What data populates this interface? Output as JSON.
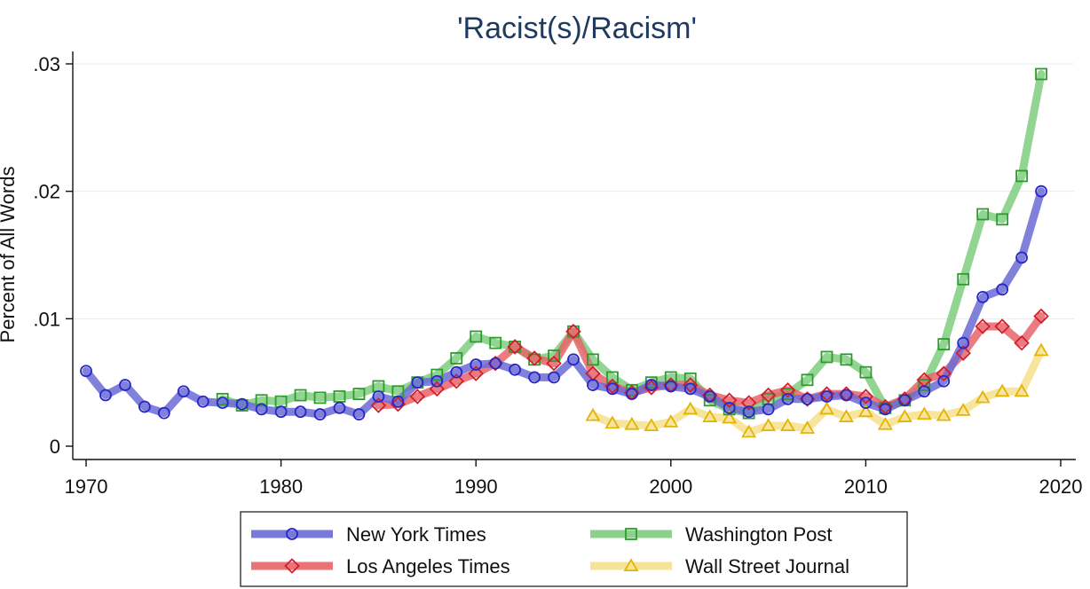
{
  "chart_data": {
    "type": "line",
    "title": "'Racist(s)/Racism'",
    "xlabel": "",
    "ylabel": "Percent of All Words",
    "xlim": [
      1970,
      2020
    ],
    "ylim": [
      0,
      0.03
    ],
    "x_ticks": [
      1970,
      1980,
      1990,
      2000,
      2010,
      2020
    ],
    "y_ticks": [
      0,
      0.01,
      0.02,
      0.03
    ],
    "y_tick_labels": [
      "0",
      ".01",
      ".02",
      ".03"
    ],
    "grid": true,
    "legend_position": "bottom",
    "series": [
      {
        "name": "New York Times",
        "color": "#6b6bd6",
        "marker_color": "#2727c8",
        "marker": "circle",
        "points": [
          [
            1970,
            0.0059
          ],
          [
            1971,
            0.004
          ],
          [
            1972,
            0.0048
          ],
          [
            1973,
            0.0031
          ],
          [
            1974,
            0.0026
          ],
          [
            1975,
            0.0043
          ],
          [
            1976,
            0.0035
          ],
          [
            1977,
            0.0034
          ],
          [
            1978,
            0.0033
          ],
          [
            1979,
            0.0029
          ],
          [
            1980,
            0.0027
          ],
          [
            1981,
            0.0027
          ],
          [
            1982,
            0.0025
          ],
          [
            1983,
            0.003
          ],
          [
            1984,
            0.0025
          ],
          [
            1985,
            0.0039
          ],
          [
            1986,
            0.0035
          ],
          [
            1987,
            0.005
          ],
          [
            1988,
            0.0051
          ],
          [
            1989,
            0.0058
          ],
          [
            1990,
            0.0064
          ],
          [
            1991,
            0.0065
          ],
          [
            1992,
            0.006
          ],
          [
            1993,
            0.0054
          ],
          [
            1994,
            0.0054
          ],
          [
            1995,
            0.0068
          ],
          [
            1996,
            0.0048
          ],
          [
            1997,
            0.0045
          ],
          [
            1998,
            0.0041
          ],
          [
            1999,
            0.0048
          ],
          [
            2000,
            0.0047
          ],
          [
            2001,
            0.0045
          ],
          [
            2002,
            0.0039
          ],
          [
            2003,
            0.003
          ],
          [
            2004,
            0.0027
          ],
          [
            2005,
            0.0029
          ],
          [
            2006,
            0.0037
          ],
          [
            2007,
            0.0037
          ],
          [
            2008,
            0.0039
          ],
          [
            2009,
            0.004
          ],
          [
            2010,
            0.0034
          ],
          [
            2011,
            0.0029
          ],
          [
            2012,
            0.0036
          ],
          [
            2013,
            0.0043
          ],
          [
            2014,
            0.0051
          ],
          [
            2015,
            0.0081
          ],
          [
            2016,
            0.0117
          ],
          [
            2017,
            0.0123
          ],
          [
            2018,
            0.0148
          ],
          [
            2019,
            0.02
          ]
        ]
      },
      {
        "name": "Los Angeles Times",
        "color": "#e8646a",
        "marker_color": "#d01f2a",
        "marker": "diamond",
        "points": [
          [
            1985,
            0.0032
          ],
          [
            1986,
            0.0033
          ],
          [
            1987,
            0.0039
          ],
          [
            1988,
            0.0045
          ],
          [
            1989,
            0.0051
          ],
          [
            1990,
            0.0057
          ],
          [
            1991,
            0.0065
          ],
          [
            1992,
            0.0078
          ],
          [
            1993,
            0.0069
          ],
          [
            1994,
            0.0065
          ],
          [
            1995,
            0.009
          ],
          [
            1996,
            0.0057
          ],
          [
            1997,
            0.0047
          ],
          [
            1998,
            0.0042
          ],
          [
            1999,
            0.0046
          ],
          [
            2000,
            0.0048
          ],
          [
            2001,
            0.0048
          ],
          [
            2002,
            0.004
          ],
          [
            2003,
            0.0036
          ],
          [
            2004,
            0.0034
          ],
          [
            2005,
            0.004
          ],
          [
            2006,
            0.0044
          ],
          [
            2007,
            0.0037
          ],
          [
            2008,
            0.0041
          ],
          [
            2009,
            0.0041
          ],
          [
            2010,
            0.0039
          ],
          [
            2011,
            0.0031
          ],
          [
            2012,
            0.0037
          ],
          [
            2013,
            0.0052
          ],
          [
            2014,
            0.0057
          ],
          [
            2015,
            0.0073
          ],
          [
            2016,
            0.0094
          ],
          [
            2017,
            0.0094
          ],
          [
            2018,
            0.0081
          ],
          [
            2019,
            0.0102
          ]
        ]
      },
      {
        "name": "Washington Post",
        "color": "#7fcc7f",
        "marker_color": "#2e9b2e",
        "marker": "square",
        "points": [
          [
            1977,
            0.0037
          ],
          [
            1978,
            0.0032
          ],
          [
            1979,
            0.0036
          ],
          [
            1980,
            0.0035
          ],
          [
            1981,
            0.004
          ],
          [
            1982,
            0.0038
          ],
          [
            1983,
            0.0039
          ],
          [
            1984,
            0.0041
          ],
          [
            1985,
            0.0047
          ],
          [
            1986,
            0.0043
          ],
          [
            1987,
            0.005
          ],
          [
            1988,
            0.0056
          ],
          [
            1989,
            0.0069
          ],
          [
            1990,
            0.0086
          ],
          [
            1991,
            0.0081
          ],
          [
            1992,
            0.0078
          ],
          [
            1993,
            0.0068
          ],
          [
            1994,
            0.0071
          ],
          [
            1995,
            0.009
          ],
          [
            1996,
            0.0068
          ],
          [
            1997,
            0.0054
          ],
          [
            1998,
            0.0044
          ],
          [
            1999,
            0.005
          ],
          [
            2000,
            0.0054
          ],
          [
            2001,
            0.0053
          ],
          [
            2002,
            0.0036
          ],
          [
            2003,
            0.0029
          ],
          [
            2004,
            0.0026
          ],
          [
            2005,
            0.0037
          ],
          [
            2006,
            0.0041
          ],
          [
            2007,
            0.0052
          ],
          [
            2008,
            0.007
          ],
          [
            2009,
            0.0068
          ],
          [
            2010,
            0.0058
          ],
          [
            2011,
            0.003
          ],
          [
            2012,
            0.0036
          ],
          [
            2013,
            0.0048
          ],
          [
            2014,
            0.008
          ],
          [
            2015,
            0.0131
          ],
          [
            2016,
            0.0182
          ],
          [
            2017,
            0.0178
          ],
          [
            2018,
            0.0212
          ],
          [
            2019,
            0.0292
          ]
        ]
      },
      {
        "name": "Wall Street Journal",
        "color": "#f6e08c",
        "marker_color": "#e3b400",
        "marker": "triangle",
        "points": [
          [
            1996,
            0.0024
          ],
          [
            1997,
            0.0018
          ],
          [
            1998,
            0.0017
          ],
          [
            1999,
            0.0016
          ],
          [
            2000,
            0.0019
          ],
          [
            2001,
            0.0029
          ],
          [
            2002,
            0.0023
          ],
          [
            2003,
            0.0022
          ],
          [
            2004,
            0.0011
          ],
          [
            2005,
            0.0016
          ],
          [
            2006,
            0.0016
          ],
          [
            2007,
            0.0014
          ],
          [
            2008,
            0.0029
          ],
          [
            2009,
            0.0023
          ],
          [
            2010,
            0.0027
          ],
          [
            2011,
            0.0017
          ],
          [
            2012,
            0.0023
          ],
          [
            2013,
            0.0025
          ],
          [
            2014,
            0.0024
          ],
          [
            2015,
            0.0028
          ],
          [
            2016,
            0.0038
          ],
          [
            2017,
            0.0043
          ],
          [
            2018,
            0.0043
          ],
          [
            2019,
            0.0075
          ]
        ]
      }
    ]
  }
}
